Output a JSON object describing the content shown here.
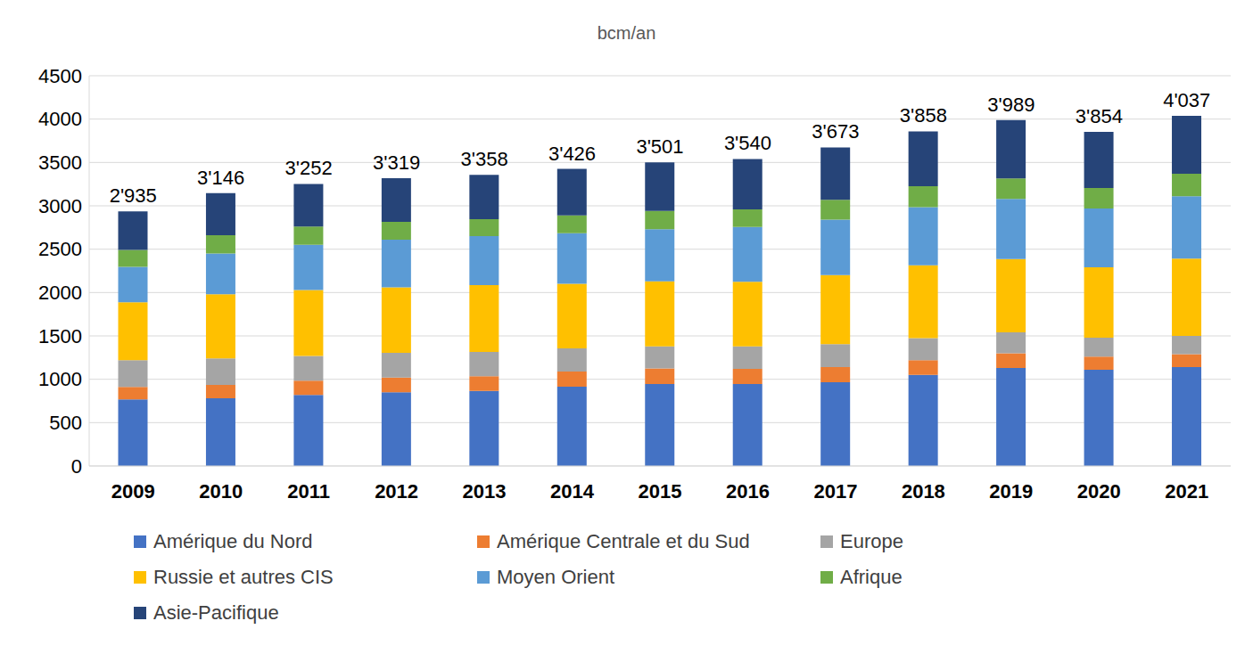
{
  "chart_data": {
    "type": "bar",
    "title": "bcm/an",
    "stacked": true,
    "grid": true,
    "legend": "bottom",
    "categories": [
      "2009",
      "2010",
      "2011",
      "2012",
      "2013",
      "2014",
      "2015",
      "2016",
      "2017",
      "2018",
      "2019",
      "2020",
      "2021"
    ],
    "ylim": [
      0,
      4500
    ],
    "yticks": [
      0,
      500,
      1000,
      1500,
      2000,
      2500,
      3000,
      3500,
      4000,
      4500
    ],
    "series": [
      {
        "name": "Amérique du Nord",
        "color": "#4472c4",
        "values": [
          769,
          780,
          820,
          850,
          865,
          915,
          945,
          945,
          965,
          1050,
          1130,
          1110,
          1140
        ]
      },
      {
        "name": "Amérique Centrale et du Sud",
        "color": "#ed7d31",
        "values": [
          144,
          155,
          165,
          170,
          170,
          175,
          180,
          175,
          175,
          170,
          170,
          150,
          150
        ]
      },
      {
        "name": "Europe",
        "color": "#a5a5a5",
        "values": [
          307,
          305,
          285,
          285,
          280,
          265,
          255,
          260,
          265,
          255,
          240,
          220,
          210
        ]
      },
      {
        "name": "Russie et autres CIS",
        "color": "#ffc000",
        "values": [
          667,
          740,
          760,
          755,
          770,
          745,
          750,
          745,
          795,
          840,
          845,
          810,
          890
        ]
      },
      {
        "name": "Moyen Orient",
        "color": "#5b9bd5",
        "values": [
          410,
          470,
          520,
          550,
          565,
          585,
          600,
          630,
          640,
          670,
          695,
          680,
          720
        ]
      },
      {
        "name": "Afrique",
        "color": "#70ad47",
        "values": [
          195,
          210,
          210,
          205,
          195,
          205,
          210,
          205,
          230,
          240,
          235,
          235,
          260
        ]
      },
      {
        "name": "Asie-Pacifique",
        "color": "#264478",
        "values": [
          443,
          486,
          492,
          504,
          513,
          536,
          561,
          580,
          603,
          633,
          674,
          649,
          667
        ]
      }
    ],
    "totals": [
      2935,
      3146,
      3252,
      3319,
      3358,
      3426,
      3501,
      3540,
      3673,
      3858,
      3989,
      3854,
      4037
    ],
    "total_labels": [
      "2'935",
      "3'146",
      "3'252",
      "3'319",
      "3'358",
      "3'426",
      "3'501",
      "3'540",
      "3'673",
      "3'858",
      "3'989",
      "3'854",
      "4'037"
    ]
  }
}
